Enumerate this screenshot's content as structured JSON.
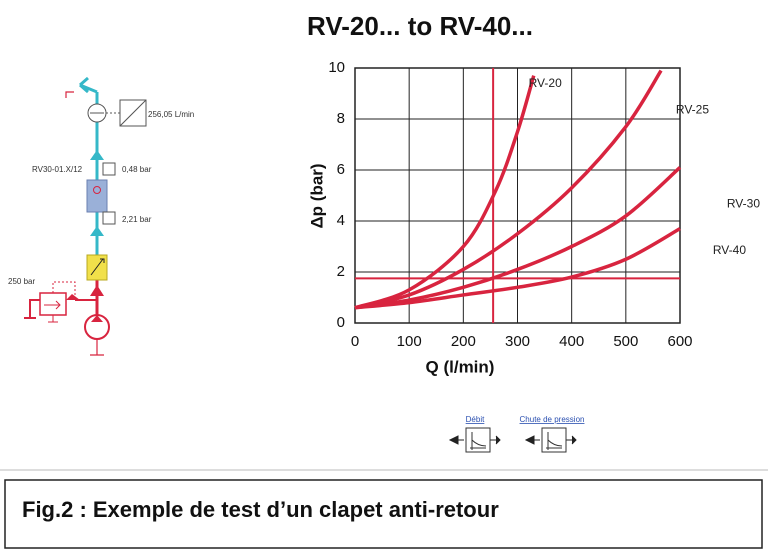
{
  "chart_data": {
    "type": "line",
    "title": "RV-20... to RV-40...",
    "x_label": "Q (l/min)",
    "y_label": "Δp (bar)",
    "xlim": [
      0,
      600
    ],
    "ylim": [
      0,
      10
    ],
    "xticks": [
      0,
      100,
      200,
      300,
      400,
      500,
      600
    ],
    "yticks": [
      0,
      2,
      4,
      6,
      8,
      10
    ],
    "grid": true,
    "series": [
      {
        "name": "RV-20",
        "color": "#d8243f",
        "x": [
          0,
          100,
          200,
          260,
          300,
          330
        ],
        "values": [
          0.6,
          1.3,
          3.0,
          5.2,
          7.5,
          9.7
        ]
      },
      {
        "name": "RV-25",
        "color": "#d8243f",
        "x": [
          0,
          100,
          200,
          300,
          400,
          500,
          565
        ],
        "values": [
          0.6,
          1.1,
          2.1,
          3.5,
          5.3,
          7.7,
          9.9
        ]
      },
      {
        "name": "RV-30",
        "color": "#d8243f",
        "x": [
          0,
          100,
          200,
          300,
          400,
          500,
          600
        ],
        "values": [
          0.6,
          0.9,
          1.4,
          2.1,
          3.0,
          4.2,
          6.1
        ]
      },
      {
        "name": "RV-40",
        "color": "#d8243f",
        "x": [
          0,
          100,
          200,
          300,
          400,
          500,
          600
        ],
        "values": [
          0.6,
          0.8,
          1.1,
          1.4,
          1.8,
          2.5,
          3.7
        ]
      }
    ],
    "reference_lines": {
      "x": 255,
      "y": 1.75,
      "color": "#d8243f"
    }
  },
  "diagram": {
    "flow_reading": "256,05 L/min",
    "valve_label": "RV30-01.X/12",
    "pressure_out": "0,48 bar",
    "pressure_in": "2,21 bar",
    "relief_setting": "250 bar"
  },
  "legend_icons": {
    "flow": "Débit",
    "pressure_drop": "Chute de pression"
  },
  "caption": "Fig.2 : Exemple de test d’un clapet anti-retour"
}
